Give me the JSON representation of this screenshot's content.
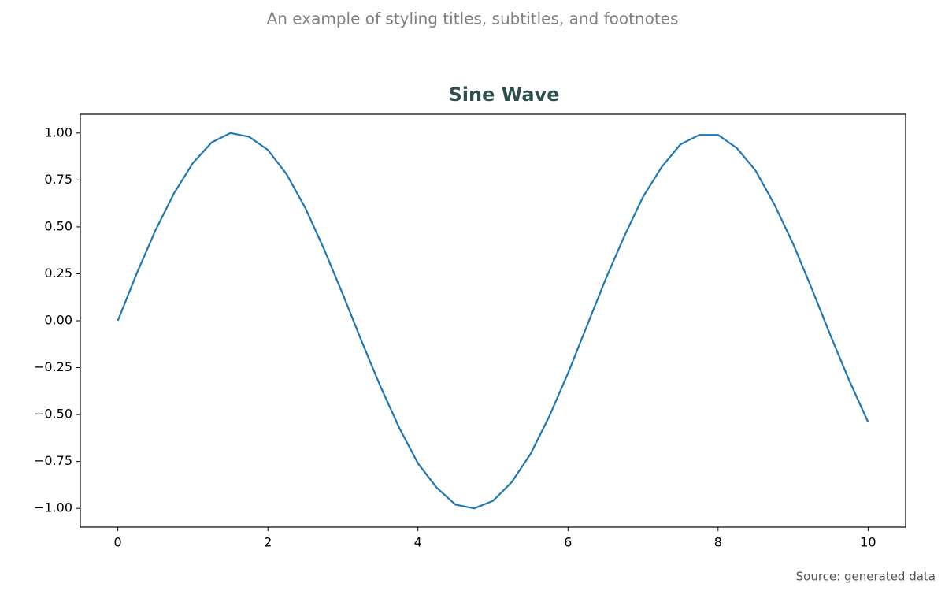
{
  "chart_data": {
    "type": "line",
    "suptitle": "An example of styling titles, subtitles, and footnotes",
    "title": "Sine Wave",
    "footnote": "Source: generated data",
    "x": [
      0,
      0.25,
      0.5,
      0.75,
      1,
      1.25,
      1.5,
      1.75,
      2,
      2.25,
      2.5,
      2.75,
      3,
      3.25,
      3.5,
      3.75,
      4,
      4.25,
      4.5,
      4.75,
      5,
      5.25,
      5.5,
      5.75,
      6,
      6.25,
      6.5,
      6.75,
      7,
      7.25,
      7.5,
      7.75,
      8,
      8.25,
      8.5,
      8.75,
      9,
      9.25,
      9.5,
      9.75,
      10
    ],
    "series": [
      {
        "color": "#1f77b4",
        "values": [
          0,
          0.25,
          0.48,
          0.68,
          0.84,
          0.95,
          1.0,
          0.98,
          0.91,
          0.78,
          0.6,
          0.38,
          0.14,
          -0.11,
          -0.35,
          -0.57,
          -0.76,
          -0.89,
          -0.98,
          -1.0,
          -0.96,
          -0.86,
          -0.71,
          -0.51,
          -0.28,
          -0.03,
          0.22,
          0.45,
          0.66,
          0.82,
          0.94,
          0.99,
          0.99,
          0.92,
          0.8,
          0.62,
          0.41,
          0.17,
          -0.08,
          -0.32,
          -0.54
        ]
      }
    ],
    "xlim": [
      -0.5,
      10.5
    ],
    "xticks": [
      0,
      2,
      4,
      6,
      8,
      10
    ],
    "ylim": [
      -1.1,
      1.1
    ],
    "yticks": [
      {
        "value": -1,
        "label": "−1.00"
      },
      {
        "value": -0.75,
        "label": "−0.75"
      },
      {
        "value": -0.5,
        "label": "−0.50"
      },
      {
        "value": -0.25,
        "label": "−0.25"
      },
      {
        "value": 0,
        "label": "0.00"
      },
      {
        "value": 0.25,
        "label": "0.25"
      },
      {
        "value": 0.5,
        "label": "0.50"
      },
      {
        "value": 0.75,
        "label": "0.75"
      },
      {
        "value": 1,
        "label": "1.00"
      }
    ],
    "grid": false
  }
}
